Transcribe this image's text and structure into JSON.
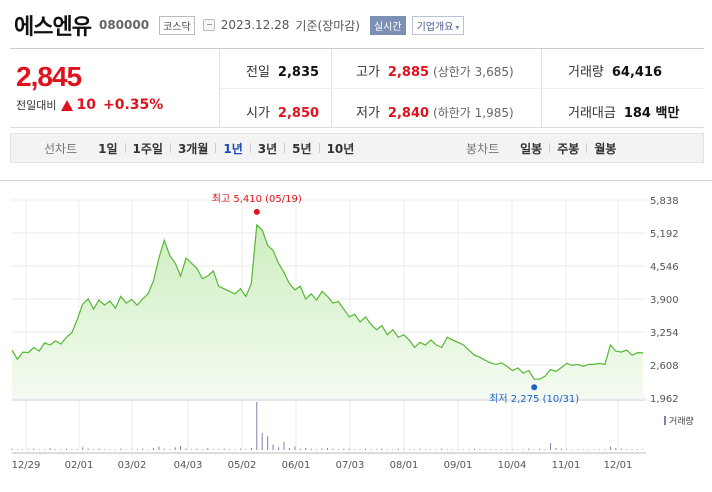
{
  "header": {
    "name": "에스엔유",
    "code": "080000",
    "market": "코스닥",
    "date": "2023.12.28",
    "basis": "기준(장마감)",
    "realtime_label": "실시간",
    "company_label": "기업개요"
  },
  "summary": {
    "price": "2,845",
    "change_label": "전일대비",
    "change_value": "10",
    "change_rate": "+0.35%",
    "prev_label": "전일",
    "prev_value": "2,835",
    "high_label": "고가",
    "high_value": "2,885",
    "upper_limit": "(상한가 3,685)",
    "volume_label": "거래량",
    "volume_value": "64,416",
    "open_label": "시가",
    "open_value": "2,850",
    "low_label": "저가",
    "low_value": "2,840",
    "lower_limit": "(하한가 1,985)",
    "amount_label": "거래대금",
    "amount_value": "184 백만"
  },
  "tabs": {
    "line_label": "선차트",
    "line_tabs": [
      "1일",
      "1주일",
      "3개월",
      "1년",
      "3년",
      "5년",
      "10년"
    ],
    "active_line_tab": 3,
    "candle_label": "봉차트",
    "candle_tabs": [
      "일봉",
      "주봉",
      "월봉"
    ]
  },
  "chart_data": {
    "type": "area",
    "y_ticks": [
      "5,838",
      "5,192",
      "4,546",
      "3,900",
      "3,254",
      "2,608",
      "1,962"
    ],
    "ylim": [
      1962,
      5838
    ],
    "x_ticks": [
      "12/29",
      "02/01",
      "03/02",
      "04/03",
      "05/02",
      "06/01",
      "07/03",
      "08/01",
      "09/01",
      "10/04",
      "11/01",
      "12/01"
    ],
    "high_annotation": "최고 5,410 (05/19)",
    "low_annotation": "최저 2,275 (10/31)",
    "volume_label": "거래량",
    "series": [
      {
        "values": [
          2900,
          2720,
          2860,
          2850,
          2950,
          2880,
          3040,
          3000,
          3080,
          3020,
          3150,
          3240,
          3500,
          3800,
          3900,
          3700,
          3880,
          3780,
          3860,
          3720,
          3950,
          3820,
          3890,
          3780,
          3900,
          4000,
          4250,
          4700,
          5050,
          4750,
          4600,
          4350,
          4700,
          4600,
          4500,
          4300,
          4350,
          4450,
          4150,
          4100,
          4050,
          4000,
          4100,
          3950,
          4200,
          5350,
          5250,
          4950,
          4850,
          4600,
          4420,
          4200,
          4080,
          4150,
          3900,
          4000,
          3880,
          4050,
          3950,
          3820,
          3850,
          3700,
          3550,
          3600,
          3450,
          3550,
          3400,
          3300,
          3380,
          3200,
          3300,
          3150,
          3200,
          3100,
          2950,
          3050,
          3000,
          3100,
          3000,
          2950,
          3150,
          3100,
          3050,
          3000,
          2900,
          2800,
          2760,
          2700,
          2650,
          2620,
          2650,
          2580,
          2500,
          2550,
          2450,
          2500,
          2330,
          2330,
          2390,
          2520,
          2480,
          2560,
          2640,
          2600,
          2620,
          2580,
          2620,
          2620,
          2640,
          2620,
          3000,
          2880,
          2860,
          2900,
          2800,
          2850,
          2845
        ]
      }
    ],
    "volume": [
      2,
      1,
      1,
      1,
      2,
      1,
      1,
      3,
      1,
      1,
      2,
      1,
      1,
      4,
      2,
      1,
      2,
      1,
      1,
      1,
      2,
      1,
      1,
      1,
      2,
      1,
      3,
      5,
      2,
      1,
      4,
      6,
      2,
      1,
      2,
      1,
      3,
      1,
      1,
      2,
      1,
      1,
      2,
      1,
      3,
      70,
      25,
      20,
      8,
      4,
      12,
      3,
      5,
      2,
      3,
      2,
      1,
      2,
      3,
      2,
      1,
      2,
      2,
      1,
      1,
      2,
      1,
      1,
      2,
      1,
      1,
      2,
      1,
      1,
      1,
      2,
      1,
      1,
      1,
      2,
      1,
      1,
      1,
      1,
      1,
      2,
      1,
      1,
      1,
      1,
      1,
      1,
      1,
      1,
      1,
      2,
      1,
      2,
      1,
      10,
      3,
      2,
      1,
      1,
      1,
      1,
      1,
      1,
      1,
      1,
      5,
      3,
      2,
      1,
      1,
      1,
      1
    ],
    "vol_max": 70,
    "colors": {
      "line": "#56b733",
      "fill_top": "#cdeebf",
      "fill_bottom": "#f4fbf1",
      "high": "#e0121d",
      "low": "#1c63c9",
      "volume": "#8a7bb0"
    }
  }
}
